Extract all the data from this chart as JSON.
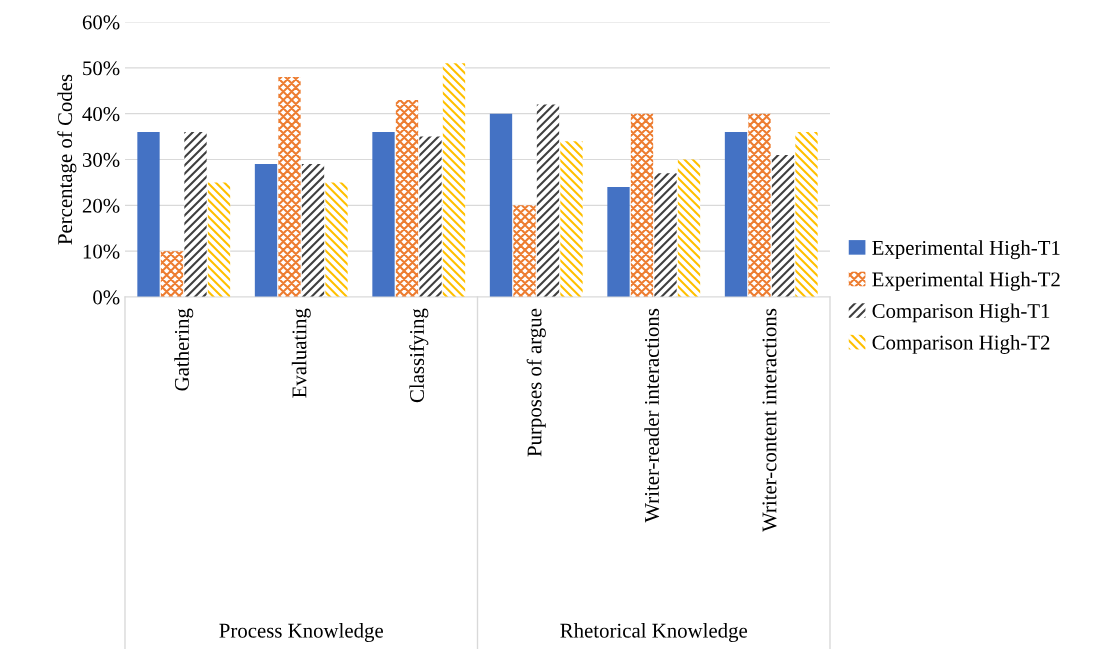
{
  "chart_data": {
    "type": "bar",
    "ylabel": "Percentage of Codes",
    "categories": [
      "Gathering",
      "Evaluating",
      "Classifying",
      "Purposes of argue",
      "Writer-reader interactions",
      "Writer-content interactions"
    ],
    "series": [
      {
        "name": "Experimental High-T1",
        "color": "#4472c4",
        "values": [
          36,
          29,
          36,
          40,
          24,
          36
        ]
      },
      {
        "name": "Experimental High-T2",
        "color": "#ed7d31",
        "values": [
          10,
          48,
          43,
          20,
          40,
          40
        ]
      },
      {
        "name": "Comparison High-T1",
        "color": "#404040",
        "values": [
          36,
          29,
          35,
          42,
          27,
          31
        ]
      },
      {
        "name": "Comparison High-T2",
        "color": "#ffc000",
        "values": [
          25,
          25,
          51,
          34,
          30,
          36
        ]
      }
    ],
    "ylim": [
      0,
      60
    ],
    "yticks": [
      {
        "value": 0,
        "label": "0%"
      },
      {
        "value": 10,
        "label": "10%"
      },
      {
        "value": 20,
        "label": "20%"
      },
      {
        "value": 30,
        "label": "30%"
      },
      {
        "value": 40,
        "label": "40%"
      },
      {
        "value": 50,
        "label": "50%"
      },
      {
        "value": 60,
        "label": "60%"
      }
    ],
    "grid": "y",
    "legend": "right",
    "annotations": [
      "Process Knowledge",
      "Rhetorical Knowledge"
    ]
  }
}
